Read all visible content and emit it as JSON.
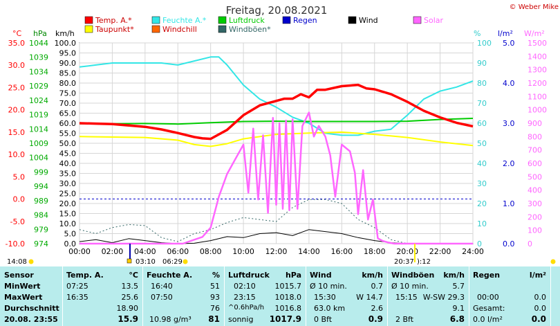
{
  "header": {
    "title": "Freitag, 20.08.2021",
    "copyright": "© Weber Mike"
  },
  "legend": [
    {
      "label": "Temp. A.*",
      "color": "#ff0000"
    },
    {
      "label": "Feuchte A.*",
      "color": "#33e6e6"
    },
    {
      "label": "Luftdruck",
      "color": "#00cc00"
    },
    {
      "label": "Regen",
      "color": "#0000cc"
    },
    {
      "label": "Wind",
      "color": "#000000"
    },
    {
      "label": "Solar",
      "color": "#ff66ff"
    },
    {
      "label": "Taupunkt*",
      "color": "#ffff00"
    },
    {
      "label": "Windchill",
      "color": "#ff6600"
    },
    {
      "label": "Windböen*",
      "color": "#336666"
    }
  ],
  "axes": {
    "temp_unit": "°C",
    "pressure_unit": "hPa",
    "wind_unit": "km/h",
    "humidity_unit": "%",
    "rain_unit": "l/m²",
    "solar_unit": "W/m²",
    "temp_ticks": [
      "35.0",
      "30.0",
      "25.0",
      "20.0",
      "15.0",
      "10.0",
      "5.0",
      "0.0",
      "-5.0",
      "-10.0"
    ],
    "pressure_ticks": [
      "1044",
      "1039",
      "1034",
      "1029",
      "1024",
      "1019",
      "1014",
      "1009",
      "1004",
      "999",
      "994",
      "989",
      "984",
      "979",
      "974"
    ],
    "wind_ticks": [
      "100.0",
      "95.0",
      "90.0",
      "85.0",
      "80.0",
      "75.0",
      "70.0",
      "65.0",
      "60.0",
      "55.0",
      "50.0",
      "45.0",
      "40.0",
      "35.0",
      "30.0",
      "25.0",
      "20.0",
      "15.0",
      "10.0",
      "5.0",
      "0.0"
    ],
    "humidity_ticks": [
      "100",
      "90",
      "80",
      "70",
      "60",
      "50",
      "40",
      "30",
      "20",
      "10",
      "0"
    ],
    "rain_ticks": [
      "5.0",
      "4.0",
      "3.0",
      "2.0",
      "1.0",
      "0.0"
    ],
    "solar_ticks": [
      "1500",
      "1400",
      "1300",
      "1200",
      "1100",
      "1000",
      "900",
      "800",
      "700",
      "600",
      "500",
      "400",
      "300",
      "200",
      "100",
      "0"
    ],
    "x_ticks": [
      "00:00",
      "02:00",
      "04:00",
      "06:00",
      "08:00",
      "10:00",
      "12:00",
      "14:00",
      "16:00",
      "18:00",
      "20:00",
      "22:00",
      "24:00"
    ]
  },
  "sun_markers": {
    "left_time": "14:08",
    "sunrise": "03:10",
    "sunrise2": "06:29",
    "sunset": "20:37",
    "sunset2": "):12"
  },
  "chart_data": {
    "type": "line",
    "x_unit": "hours",
    "xlim": [
      0,
      24
    ],
    "series": [
      {
        "name": "Temp. A.*",
        "axis": "temp",
        "ylim": [
          -10,
          35
        ],
        "x": [
          0,
          1,
          2,
          3,
          4,
          5,
          6,
          7,
          7.5,
          8,
          9,
          10,
          11,
          12,
          12.5,
          13,
          13.5,
          14,
          14.5,
          15,
          16,
          17,
          17.5,
          18,
          19,
          20,
          21,
          22,
          23,
          24
        ],
        "values": [
          17.0,
          16.9,
          16.8,
          16.5,
          16.2,
          15.6,
          14.8,
          13.9,
          13.6,
          13.5,
          15.5,
          18.8,
          21.0,
          22.0,
          22.5,
          22.5,
          23.5,
          22.8,
          24.5,
          24.5,
          25.3,
          25.6,
          24.8,
          24.6,
          23.5,
          21.8,
          19.8,
          18.3,
          17.1,
          16.3
        ]
      },
      {
        "name": "Feuchte A.*",
        "axis": "humidity",
        "ylim": [
          0,
          100
        ],
        "x": [
          0,
          1,
          2,
          3,
          4,
          5,
          6,
          7,
          8,
          8.5,
          9,
          10,
          11,
          12,
          13,
          14,
          15,
          16,
          17,
          18,
          19,
          20,
          21,
          22,
          23,
          24
        ],
        "values": [
          88,
          89,
          90,
          90,
          90,
          90,
          89,
          91,
          93,
          93,
          89,
          79,
          72,
          68,
          63,
          60,
          55,
          54,
          54,
          56,
          57,
          64,
          72,
          76,
          78,
          81
        ]
      },
      {
        "name": "Luftdruck",
        "axis": "pressure",
        "ylim": [
          974,
          1044
        ],
        "x": [
          0,
          2,
          4,
          6,
          8,
          10,
          12,
          14,
          16,
          18,
          20,
          22,
          24
        ],
        "values": [
          1015.8,
          1015.8,
          1015.9,
          1015.7,
          1016.2,
          1016.6,
          1016.7,
          1016.6,
          1016.6,
          1016.6,
          1016.7,
          1017.3,
          1017.7
        ]
      },
      {
        "name": "Taupunkt*",
        "axis": "temp",
        "ylim": [
          -10,
          35
        ],
        "x": [
          0,
          2,
          4,
          6,
          7,
          8,
          9,
          10,
          12,
          14,
          16,
          18,
          20,
          22,
          24
        ],
        "values": [
          14.0,
          13.9,
          13.8,
          13.2,
          12.2,
          11.8,
          12.4,
          13.5,
          14.5,
          14.8,
          15.0,
          14.5,
          13.8,
          12.8,
          12.0
        ]
      },
      {
        "name": "Wind",
        "axis": "wind",
        "ylim": [
          0,
          100
        ],
        "x": [
          0,
          1,
          2,
          3,
          4,
          5,
          6,
          7,
          8,
          9,
          10,
          11,
          12,
          13,
          14,
          15,
          16,
          17,
          18,
          19,
          20
        ],
        "values": [
          1.0,
          2.0,
          0.5,
          2.5,
          1.5,
          0.5,
          0.0,
          0.2,
          1.5,
          3.5,
          3.0,
          5.0,
          5.5,
          4.0,
          7.0,
          6.0,
          5.0,
          3.0,
          1.5,
          0.5,
          0.0
        ]
      },
      {
        "name": "Windböen*",
        "axis": "wind",
        "ylim": [
          0,
          100
        ],
        "x": [
          0,
          1,
          2,
          3,
          4,
          5,
          6,
          7,
          8,
          9,
          10,
          11,
          12,
          13,
          14,
          15,
          16,
          17,
          18,
          19,
          20
        ],
        "values": [
          7.0,
          5.0,
          8.0,
          9.5,
          9.0,
          3.0,
          1.0,
          5.0,
          7.0,
          10.5,
          13.0,
          12.0,
          11.0,
          18.0,
          22.0,
          22.0,
          20.0,
          12.0,
          8.0,
          2.0,
          0.0
        ]
      },
      {
        "name": "Solar",
        "axis": "solar",
        "ylim": [
          0,
          1500
        ],
        "x": [
          0,
          6.3,
          7.5,
          8,
          8.5,
          9,
          9.5,
          10,
          10.3,
          10.6,
          10.9,
          11.2,
          11.5,
          11.8,
          12,
          12.2,
          12.4,
          12.6,
          12.8,
          13,
          13.3,
          13.6,
          14,
          14.3,
          14.6,
          15,
          15.3,
          15.6,
          16,
          16.5,
          16.8,
          17,
          17.3,
          17.6,
          17.9,
          18.2,
          18.5,
          18.8,
          19.2,
          19.7,
          20.3,
          24
        ],
        "values": [
          0,
          0,
          50,
          120,
          350,
          520,
          630,
          740,
          380,
          860,
          330,
          810,
          230,
          940,
          290,
          900,
          260,
          920,
          250,
          930,
          260,
          880,
          980,
          800,
          880,
          800,
          660,
          350,
          740,
          690,
          530,
          220,
          550,
          180,
          330,
          40,
          20,
          10,
          0,
          0,
          0,
          0
        ]
      }
    ],
    "rain": {
      "values": [
        0,
        0
      ],
      "x": [
        0,
        24
      ]
    },
    "grid": true
  },
  "table": {
    "sensor_col": {
      "header": "Sensor",
      "rows": [
        "MinWert",
        "MaxWert",
        "Durchschnitt",
        "20.08. 23:55"
      ]
    },
    "temp": {
      "header": "Temp. A.",
      "unit": "°C",
      "rows": [
        [
          "07:25",
          "13.5"
        ],
        [
          "16:35",
          "25.6"
        ],
        [
          "",
          "18.90"
        ],
        [
          "",
          "15.9"
        ]
      ]
    },
    "humidity": {
      "header": "Feuchte A.",
      "unit": "%",
      "rows": [
        [
          "16:40",
          "51"
        ],
        [
          "07:50",
          "93"
        ],
        [
          "",
          "76"
        ],
        [
          "10.98 g/m³",
          "81"
        ]
      ]
    },
    "pressure": {
      "header": "Luftdruck",
      "unit": "hPa",
      "rows": [
        [
          "02:10",
          "1015.7"
        ],
        [
          "23:15",
          "1018.0"
        ],
        [
          "^0.6hPa/h",
          "1016.8"
        ],
        [
          "sonnig",
          "1017.9"
        ]
      ]
    },
    "wind": {
      "header": "Wind",
      "unit": "km/h",
      "rows": [
        [
          "Ø 10 min.",
          "0.7"
        ],
        [
          "15:30",
          "W 14.7"
        ],
        [
          "63.0 km",
          "2.6"
        ],
        [
          "0 Bft",
          "0.9"
        ]
      ]
    },
    "gust": {
      "header": "Windböen",
      "unit": "km/h",
      "rows": [
        [
          "Ø 10 min.",
          "5.7"
        ],
        [
          "15:15",
          "W-SW 29.3"
        ],
        [
          "",
          "9.1"
        ],
        [
          "2 Bft",
          "6.8"
        ]
      ]
    },
    "rain": {
      "header": "Regen",
      "unit": "l/m²",
      "rows": [
        [
          "",
          ""
        ],
        [
          "00:00",
          "0.0"
        ],
        [
          "Gesamt:",
          "0.0"
        ],
        [
          "0.0 l/m²",
          "0.0"
        ]
      ]
    }
  }
}
